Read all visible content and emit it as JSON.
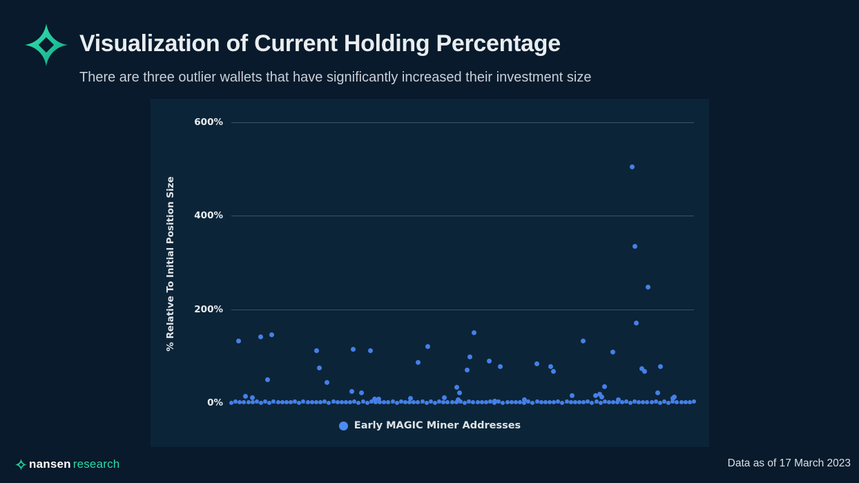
{
  "header": {
    "title": "Visualization of Current Holding Percentage",
    "subtitle": "There are three outlier wallets that have significantly increased their investment size"
  },
  "footer": {
    "brand_bold": "nansen",
    "brand_light": "research",
    "date_note": "Data as of 17 March 2023"
  },
  "colors": {
    "page_bg": "#081A2B",
    "panel_bg": "#0C2437",
    "gridline": "#3C5268",
    "scatter_dot": "#4580E8",
    "legend_dot": "#4D8BF2",
    "brand_teal": "#2BD9A8",
    "logo_teal_light": "#36E9B5",
    "logo_teal_dark": "#11A383"
  },
  "chart_data": {
    "type": "scatter",
    "title": "",
    "xlabel": "",
    "ylabel": "% Relative To Initial Position Size",
    "ylim": [
      0,
      650
    ],
    "y_ticks_pct": [
      600,
      400,
      200,
      0
    ],
    "grid": "horizontal",
    "legend": {
      "position": "bottom-center",
      "entries": [
        "Early MAGIC Miner Addresses"
      ]
    },
    "series_name": "Early MAGIC Miner Addresses",
    "outliers_pct": [
      505,
      335,
      247
    ],
    "points": [
      [
        0.016,
        132
      ],
      [
        0.031,
        14
      ],
      [
        0.046,
        11
      ],
      [
        0.064,
        141
      ],
      [
        0.079,
        50
      ],
      [
        0.088,
        145
      ],
      [
        0.184,
        111
      ],
      [
        0.19,
        74
      ],
      [
        0.206,
        43
      ],
      [
        0.261,
        25
      ],
      [
        0.264,
        114
      ],
      [
        0.281,
        22
      ],
      [
        0.301,
        111
      ],
      [
        0.309,
        8
      ],
      [
        0.319,
        8
      ],
      [
        0.388,
        9
      ],
      [
        0.404,
        86
      ],
      [
        0.425,
        120
      ],
      [
        0.46,
        11
      ],
      [
        0.487,
        33
      ],
      [
        0.49,
        7
      ],
      [
        0.494,
        22
      ],
      [
        0.51,
        70
      ],
      [
        0.515,
        98
      ],
      [
        0.525,
        150
      ],
      [
        0.557,
        90
      ],
      [
        0.57,
        4
      ],
      [
        0.581,
        78
      ],
      [
        0.634,
        7
      ],
      [
        0.661,
        84
      ],
      [
        0.69,
        78
      ],
      [
        0.696,
        67
      ],
      [
        0.736,
        15
      ],
      [
        0.761,
        132
      ],
      [
        0.787,
        15
      ],
      [
        0.796,
        19
      ],
      [
        0.8,
        13
      ],
      [
        0.807,
        34
      ],
      [
        0.825,
        108
      ],
      [
        0.836,
        7
      ],
      [
        0.866,
        505
      ],
      [
        0.872,
        335
      ],
      [
        0.876,
        170
      ],
      [
        0.888,
        73
      ],
      [
        0.893,
        67
      ],
      [
        0.901,
        247
      ],
      [
        0.922,
        22
      ],
      [
        0.927,
        78
      ],
      [
        0.954,
        9
      ],
      [
        0.958,
        12
      ]
    ],
    "baseline_band": {
      "description": "dense continuous row of overlapping wallet points at ~0-2%",
      "x_start": 0.0,
      "x_end": 1.0,
      "count": 110,
      "y_pct_min": 0,
      "y_pct_max": 2.5
    }
  }
}
